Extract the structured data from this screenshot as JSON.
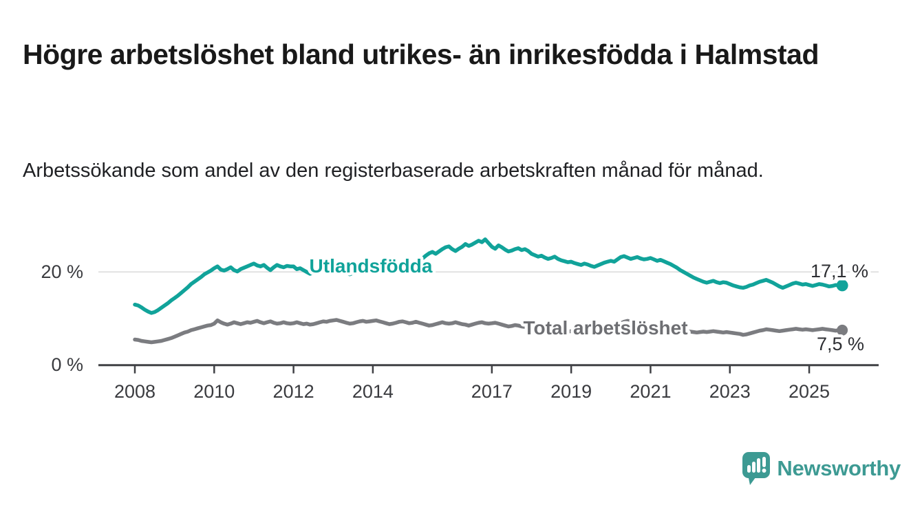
{
  "header": {
    "title": "Högre arbetslöshet bland utrikes- än inrikesfödda i Halmstad",
    "subtitle": "Arbetssökande som andel av den registerbaserade arbetskraften månad för månad."
  },
  "footer": {
    "brand": "Newsworthy",
    "brand_color": "#3d9a93",
    "logo_icon": "speech-bubble-bar-chart-icon"
  },
  "chart_data": {
    "type": "line",
    "title": "Högre arbetslöshet bland utrikes- än inrikesfödda i Halmstad",
    "unit": "%",
    "x_start": "2008-01",
    "x_end": "2025-11",
    "x_points_per_year": 12,
    "x_tick_years": [
      2008,
      2010,
      2012,
      2014,
      2017,
      2019,
      2021,
      2023,
      2025
    ],
    "x_tick_labels": [
      "2008",
      "2010",
      "2012",
      "2014",
      "2017",
      "2019",
      "2021",
      "2023",
      "2025"
    ],
    "y_ticks": [
      {
        "value": 0,
        "label": "0 %"
      },
      {
        "value": 20,
        "label": "20 %"
      }
    ],
    "ylim": [
      0,
      29
    ],
    "grid": "single-horizontal-gridline-at-20",
    "legend_position": "inline-on-lines",
    "series": [
      {
        "name": "Utlandsfödda",
        "color": "#11a39a",
        "end_value": 17.1,
        "end_label": "17,1 %",
        "values": [
          13.0,
          12.8,
          12.4,
          11.9,
          11.5,
          11.2,
          11.4,
          11.8,
          12.3,
          12.8,
          13.3,
          13.9,
          14.4,
          14.9,
          15.5,
          16.1,
          16.7,
          17.4,
          17.9,
          18.4,
          18.9,
          19.5,
          19.9,
          20.3,
          20.8,
          21.2,
          20.5,
          20.3,
          20.6,
          21.0,
          20.4,
          20.1,
          20.6,
          20.9,
          21.2,
          21.5,
          21.8,
          21.4,
          21.2,
          21.5,
          20.9,
          20.4,
          21.0,
          21.5,
          21.2,
          21.0,
          21.3,
          21.2,
          21.2,
          20.6,
          20.8,
          20.4,
          20.0,
          19.6,
          19.9,
          20.3,
          20.6,
          20.3,
          20.1,
          20.4,
          20.6,
          20.9,
          20.6,
          20.2,
          19.8,
          19.5,
          19.8,
          20.2,
          20.5,
          20.8,
          20.5,
          20.7,
          20.9,
          21.1,
          20.7,
          20.3,
          19.9,
          20.1,
          20.4,
          20.7,
          20.9,
          21.1,
          21.0,
          21.2,
          21.5,
          21.8,
          22.3,
          22.9,
          23.5,
          24.0,
          24.3,
          23.9,
          24.4,
          24.9,
          25.3,
          25.5,
          24.9,
          24.5,
          25.0,
          25.4,
          26.0,
          25.6,
          25.9,
          26.3,
          26.7,
          26.4,
          27.0,
          26.2,
          25.4,
          25.0,
          25.7,
          25.3,
          24.8,
          24.4,
          24.6,
          24.9,
          25.1,
          24.7,
          24.9,
          24.5,
          23.9,
          23.6,
          23.3,
          23.5,
          23.1,
          22.8,
          23.0,
          23.3,
          22.8,
          22.5,
          22.3,
          22.1,
          22.2,
          21.9,
          21.7,
          21.5,
          21.8,
          21.6,
          21.3,
          21.1,
          21.4,
          21.7,
          22.0,
          22.2,
          22.4,
          22.2,
          22.7,
          23.2,
          23.4,
          23.1,
          22.8,
          23.0,
          23.2,
          22.9,
          22.7,
          22.8,
          23.0,
          22.7,
          22.4,
          22.6,
          22.3,
          22.0,
          21.7,
          21.3,
          20.9,
          20.4,
          20.0,
          19.6,
          19.2,
          18.8,
          18.5,
          18.2,
          17.9,
          17.7,
          17.9,
          18.1,
          17.8,
          17.6,
          17.8,
          17.7,
          17.4,
          17.1,
          16.9,
          16.7,
          16.6,
          16.8,
          17.1,
          17.3,
          17.6,
          17.9,
          18.1,
          18.3,
          18.0,
          17.7,
          17.3,
          16.9,
          16.6,
          16.9,
          17.2,
          17.5,
          17.7,
          17.5,
          17.3,
          17.4,
          17.2,
          17.0,
          17.2,
          17.4,
          17.3,
          17.1,
          16.9,
          17.0,
          17.2,
          17.1,
          17.1
        ]
      },
      {
        "name": "Total arbetslöshet",
        "color": "#7b7c80",
        "end_value": 7.5,
        "end_label": "7,5 %",
        "values": [
          5.5,
          5.4,
          5.2,
          5.1,
          5.0,
          4.9,
          5.0,
          5.1,
          5.2,
          5.4,
          5.6,
          5.8,
          6.1,
          6.4,
          6.7,
          7.0,
          7.2,
          7.5,
          7.7,
          7.9,
          8.1,
          8.3,
          8.5,
          8.6,
          8.9,
          9.6,
          9.2,
          8.9,
          8.7,
          8.9,
          9.2,
          9.0,
          8.8,
          9.0,
          9.2,
          9.1,
          9.3,
          9.5,
          9.2,
          9.0,
          9.2,
          9.4,
          9.1,
          8.9,
          9.0,
          9.2,
          9.0,
          8.9,
          9.0,
          9.2,
          9.0,
          8.8,
          8.9,
          8.7,
          8.8,
          9.0,
          9.2,
          9.4,
          9.3,
          9.5,
          9.6,
          9.7,
          9.5,
          9.3,
          9.1,
          8.9,
          9.0,
          9.2,
          9.4,
          9.5,
          9.3,
          9.4,
          9.5,
          9.6,
          9.4,
          9.2,
          9.0,
          8.8,
          8.9,
          9.1,
          9.3,
          9.4,
          9.2,
          9.0,
          9.1,
          9.3,
          9.1,
          8.9,
          8.7,
          8.5,
          8.6,
          8.8,
          9.0,
          9.2,
          9.0,
          8.9,
          9.0,
          9.2,
          9.0,
          8.8,
          8.7,
          8.5,
          8.7,
          8.9,
          9.1,
          9.2,
          9.0,
          8.9,
          9.0,
          9.1,
          8.9,
          8.7,
          8.5,
          8.3,
          8.4,
          8.6,
          8.5,
          8.3,
          8.2,
          8.1,
          8.0,
          7.9,
          7.8,
          7.7,
          7.6,
          7.5,
          7.6,
          7.7,
          7.5,
          7.4,
          7.3,
          7.2,
          7.3,
          7.2,
          7.1,
          7.0,
          7.1,
          7.2,
          7.3,
          7.4,
          7.5,
          7.6,
          7.7,
          7.8,
          8.0,
          8.2,
          8.6,
          9.0,
          9.3,
          9.5,
          9.4,
          9.3,
          9.2,
          9.0,
          8.8,
          8.7,
          8.8,
          8.9,
          8.7,
          8.5,
          8.3,
          8.1,
          7.9,
          7.7,
          7.5,
          7.4,
          7.3,
          7.2,
          7.2,
          7.1,
          7.0,
          7.1,
          7.2,
          7.1,
          7.2,
          7.3,
          7.2,
          7.1,
          7.0,
          7.1,
          7.0,
          6.9,
          6.8,
          6.7,
          6.5,
          6.6,
          6.8,
          7.0,
          7.2,
          7.4,
          7.5,
          7.7,
          7.6,
          7.5,
          7.4,
          7.3,
          7.4,
          7.5,
          7.6,
          7.7,
          7.8,
          7.7,
          7.6,
          7.7,
          7.6,
          7.5,
          7.6,
          7.7,
          7.8,
          7.7,
          7.6,
          7.5,
          7.4,
          7.5,
          7.5
        ]
      }
    ]
  }
}
